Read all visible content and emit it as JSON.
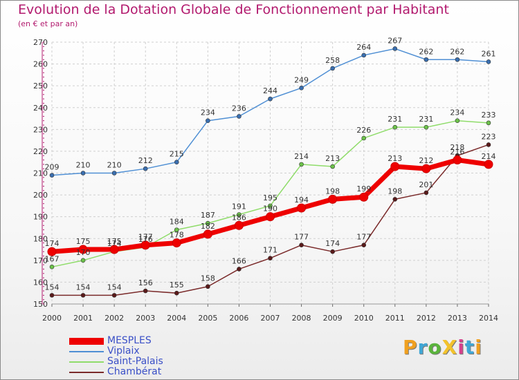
{
  "title": "Evolution de la Dotation Globale de Fonctionnement par Habitant",
  "subtitle": "(en € et par an)",
  "logo": {
    "text": "ProXiti",
    "colors": [
      "#f0a020",
      "#3fa7d6",
      "#5ab43c",
      "#f2c22c",
      "#d6408c",
      "#3fa7d6",
      "#f0a020"
    ]
  },
  "chart_data": {
    "type": "line",
    "title": "Evolution de la Dotation Globale de Fonctionnement par Habitant",
    "subtitle": "(en € et par an)",
    "x": [
      "2000",
      "2001",
      "2002",
      "2003",
      "2004",
      "2005",
      "2006",
      "2007",
      "2008",
      "2009",
      "2010",
      "2011",
      "2012",
      "2013",
      "2014"
    ],
    "yticks": [
      150,
      160,
      170,
      180,
      190,
      200,
      210,
      220,
      230,
      240,
      250,
      260,
      270
    ],
    "ylim": [
      150,
      270
    ],
    "grid": true,
    "legend_position": "bottom-left",
    "series": [
      {
        "name": "Viplaix",
        "color": "#4f8fd4",
        "marker": "#3a6fb0",
        "values": [
          209,
          210,
          210,
          212,
          215,
          234,
          236,
          244,
          249,
          258,
          264,
          267,
          262,
          262,
          261
        ]
      },
      {
        "name": "Saint-Palais",
        "color": "#8fdc6a",
        "marker": "#6cc24a",
        "values": [
          167,
          170,
          174,
          176,
          184,
          187,
          191,
          195,
          214,
          213,
          226,
          231,
          231,
          234,
          233
        ]
      },
      {
        "name": "Chambérat",
        "color": "#7a2a2a",
        "marker": "#5a1a1a",
        "values": [
          154,
          154,
          154,
          156,
          155,
          158,
          166,
          171,
          177,
          174,
          177,
          198,
          201,
          218,
          223
        ]
      },
      {
        "name": "MESPLES",
        "color": "#ee0000",
        "marker": "#ee0000",
        "values": [
          174,
          175,
          175,
          177,
          178,
          182,
          186,
          190,
          194,
          198,
          199,
          213,
          212,
          216,
          214
        ]
      }
    ],
    "legend_order": [
      "MESPLES",
      "Viplaix",
      "Saint-Palais",
      "Chambérat"
    ]
  }
}
